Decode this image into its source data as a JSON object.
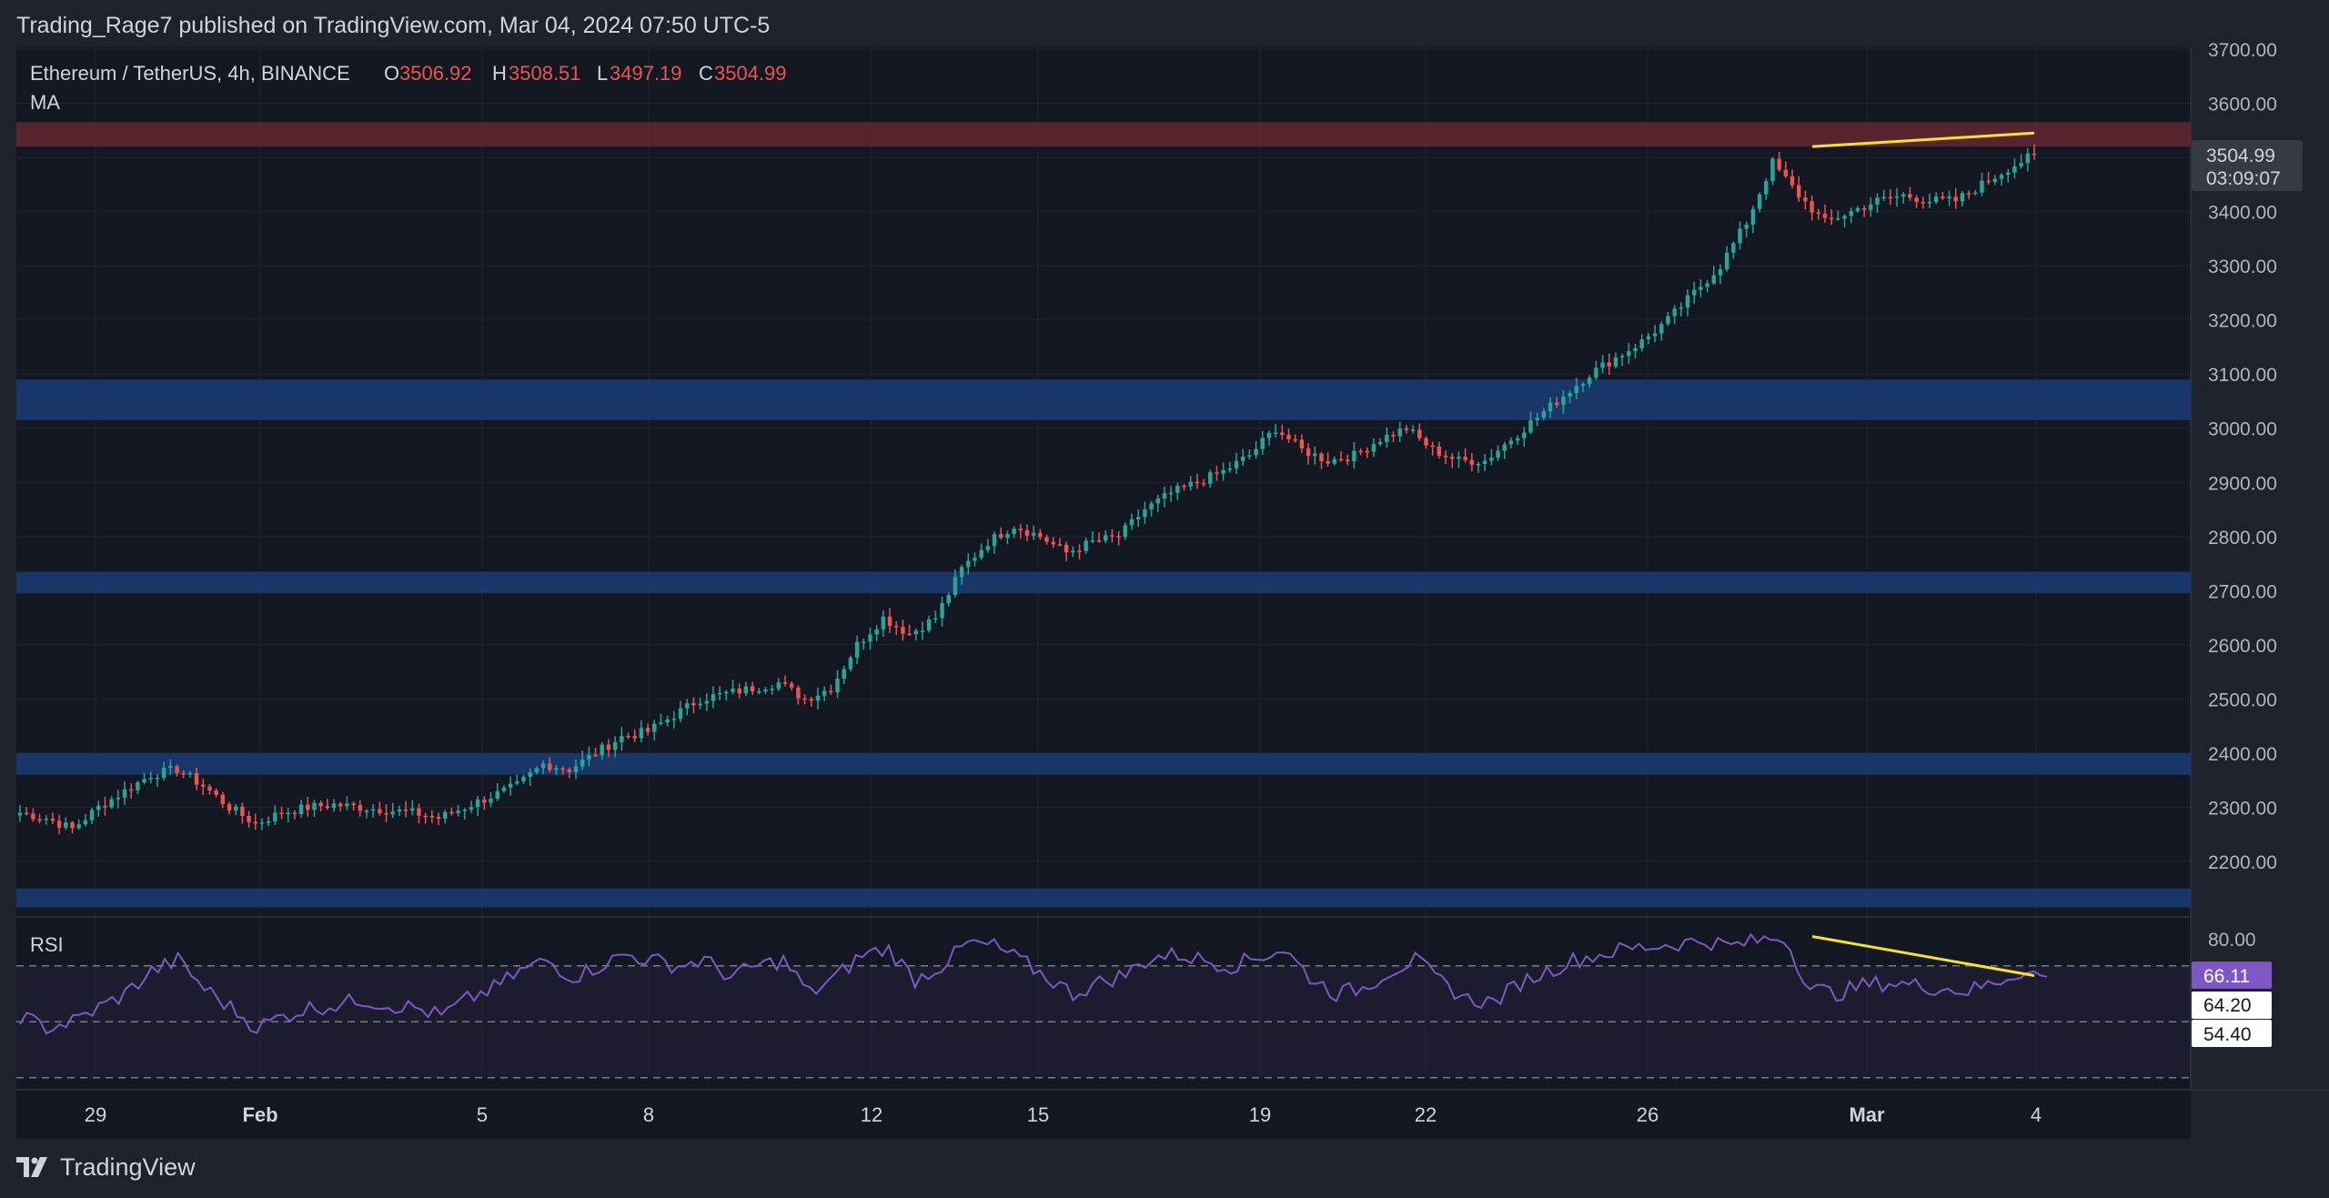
{
  "caption": "Trading_Rage7 published on TradingView.com, Mar 04, 2024 07:50 UTC-5",
  "branding": "TradingView",
  "legend": {
    "symbol": "Ethereum / TetherUS, 4h, BINANCE",
    "o_label": "O",
    "o_value": "3506.92",
    "h_label": "H",
    "h_value": "3508.51",
    "l_label": "L",
    "l_value": "3497.19",
    "c_label": "C",
    "c_value": "3504.99",
    "indicator": "MA"
  },
  "price_tag": {
    "price": "3504.99",
    "countdown": "03:09:07"
  },
  "rsi": {
    "label": "RSI",
    "value": "66.11",
    "upper": "64.20",
    "lower": "54.40",
    "top_tick": "80.00"
  },
  "colors": {
    "up": "#26a69a",
    "down": "#ef5350",
    "resistance": "#5c2630",
    "support": "#1b3a70",
    "trendline": "#f5e12f",
    "rsi_line": "#7e57c2",
    "rsi_badge": "#7e57c2"
  },
  "chart_data": [
    {
      "type": "candlestick",
      "title": "Ethereum / TetherUS, 4h, BINANCE",
      "x_ticks": [
        "29",
        "Feb",
        "5",
        "8",
        "12",
        "15",
        "19",
        "22",
        "26",
        "Mar",
        "4"
      ],
      "y_ticks": [
        "2200.00",
        "2300.00",
        "2400.00",
        "2500.00",
        "2600.00",
        "2700.00",
        "2800.00",
        "2900.00",
        "3000.00",
        "3100.00",
        "3200.00",
        "3300.00",
        "3400.00",
        "3500.00",
        "3600.00",
        "3700.00"
      ],
      "ylim": [
        2120,
        3705
      ],
      "last_price": 3504.99,
      "resistance_zone": [
        3520,
        3565
      ],
      "support_zones": [
        [
          3015,
          3090
        ],
        [
          2695,
          2735
        ],
        [
          2360,
          2400
        ],
        [
          2115,
          2150
        ]
      ],
      "trendline": {
        "from": [
          "Feb 29",
          3520
        ],
        "to": [
          "Mar 4",
          3545
        ]
      },
      "closes_approx": [
        2290,
        2280,
        2260,
        2300,
        2330,
        2360,
        2370,
        2340,
        2300,
        2270,
        2290,
        2300,
        2305,
        2300,
        2295,
        2290,
        2280,
        2300,
        2320,
        2340,
        2380,
        2370,
        2400,
        2430,
        2440,
        2470,
        2500,
        2510,
        2520,
        2530,
        2500,
        2520,
        2600,
        2650,
        2620,
        2650,
        2740,
        2790,
        2820,
        2800,
        2770,
        2790,
        2800,
        2850,
        2880,
        2900,
        2920,
        2950,
        3000,
        2960,
        2940,
        2950,
        2980,
        3000,
        2960,
        2940,
        2940,
        2980,
        3020,
        3060,
        3100,
        3130,
        3160,
        3200,
        3250,
        3300,
        3380,
        3490,
        3430,
        3380,
        3400,
        3420,
        3430,
        3420,
        3420,
        3450,
        3480,
        3505
      ]
    },
    {
      "type": "line",
      "title": "RSI",
      "ylim": [
        40,
        82
      ],
      "levels": [
        70,
        50,
        30
      ],
      "trendline": {
        "from": [
          "Feb 29",
          80.5
        ],
        "to": [
          "Mar 4",
          66.5
        ]
      },
      "values_approx": [
        52,
        48,
        50,
        55,
        60,
        68,
        72,
        62,
        55,
        48,
        52,
        55,
        56,
        58,
        56,
        55,
        52,
        58,
        62,
        68,
        72,
        66,
        70,
        74,
        72,
        70,
        72,
        66,
        70,
        72,
        60,
        66,
        74,
        76,
        65,
        70,
        78,
        77,
        72,
        66,
        60,
        64,
        67,
        73,
        74,
        72,
        70,
        73,
        76,
        66,
        60,
        62,
        68,
        72,
        64,
        58,
        57,
        64,
        68,
        72,
        74,
        76,
        77,
        78,
        79,
        77,
        79,
        80.5,
        62,
        60,
        63,
        64,
        63,
        62,
        61,
        64,
        68,
        66.11
      ]
    }
  ]
}
